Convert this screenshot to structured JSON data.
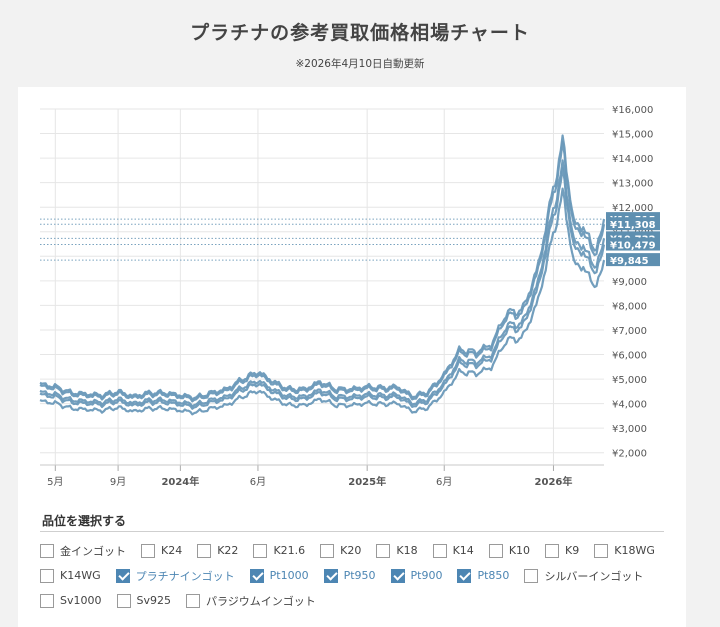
{
  "header": {
    "title": "プラチナの参考買取価格相場チャート",
    "subtitle": "※2026年4月10日自動更新"
  },
  "chart_data": {
    "type": "line",
    "title": "",
    "ylim": [
      1500,
      16000
    ],
    "y_ticks": [
      2000,
      3000,
      4000,
      5000,
      6000,
      7000,
      8000,
      9000,
      10000,
      11000,
      12000,
      13000,
      14000,
      15000,
      16000
    ],
    "y_tick_labels": [
      "¥2,000",
      "¥3,000",
      "¥4,000",
      "¥5,000",
      "¥6,000",
      "¥7,000",
      "¥8,000",
      "¥9,000",
      "¥10,000",
      "¥11,000",
      "¥12,000",
      "¥13,000",
      "¥14,000",
      "¥15,000",
      "¥16,000"
    ],
    "x_range": [
      "2023-04-01",
      "2026-04-10"
    ],
    "x_ticks": [
      {
        "date": "2023-05-01",
        "label": "5月",
        "bold": false
      },
      {
        "date": "2023-09-01",
        "label": "9月",
        "bold": false
      },
      {
        "date": "2024-01-01",
        "label": "2024年",
        "bold": true
      },
      {
        "date": "2024-06-01",
        "label": "6月",
        "bold": false
      },
      {
        "date": "2025-01-01",
        "label": "2025年",
        "bold": true
      },
      {
        "date": "2025-06-01",
        "label": "6月",
        "bold": false
      },
      {
        "date": "2026-01-01",
        "label": "2026年",
        "bold": true
      }
    ],
    "line_color": "#6a99b9",
    "label_color": "#5e8fb0",
    "grid": true,
    "profile": [
      {
        "x": "2023-04-01",
        "y": 4800
      },
      {
        "x": "2023-05-01",
        "y": 4700
      },
      {
        "x": "2023-06-01",
        "y": 4450
      },
      {
        "x": "2023-07-01",
        "y": 4400
      },
      {
        "x": "2023-08-01",
        "y": 4350
      },
      {
        "x": "2023-09-01",
        "y": 4500
      },
      {
        "x": "2023-10-01",
        "y": 4300
      },
      {
        "x": "2023-11-01",
        "y": 4450
      },
      {
        "x": "2023-12-01",
        "y": 4450
      },
      {
        "x": "2024-01-01",
        "y": 4350
      },
      {
        "x": "2024-02-01",
        "y": 4250
      },
      {
        "x": "2024-03-01",
        "y": 4450
      },
      {
        "x": "2024-04-01",
        "y": 4600
      },
      {
        "x": "2024-05-01",
        "y": 5000
      },
      {
        "x": "2024-06-01",
        "y": 5300
      },
      {
        "x": "2024-07-01",
        "y": 4900
      },
      {
        "x": "2024-08-01",
        "y": 4600
      },
      {
        "x": "2024-09-01",
        "y": 4600
      },
      {
        "x": "2024-10-01",
        "y": 4900
      },
      {
        "x": "2024-11-01",
        "y": 4600
      },
      {
        "x": "2024-12-01",
        "y": 4600
      },
      {
        "x": "2025-01-01",
        "y": 4700
      },
      {
        "x": "2025-02-01",
        "y": 4650
      },
      {
        "x": "2025-03-01",
        "y": 4700
      },
      {
        "x": "2025-04-01",
        "y": 4300
      },
      {
        "x": "2025-05-01",
        "y": 4500
      },
      {
        "x": "2025-06-01",
        "y": 5200
      },
      {
        "x": "2025-07-01",
        "y": 6200
      },
      {
        "x": "2025-08-01",
        "y": 6100
      },
      {
        "x": "2025-09-01",
        "y": 6400
      },
      {
        "x": "2025-10-01",
        "y": 7700
      },
      {
        "x": "2025-11-01",
        "y": 7800
      },
      {
        "x": "2025-12-01",
        "y": 9500
      },
      {
        "x": "2026-01-01",
        "y": 12800
      },
      {
        "x": "2026-01-20",
        "y": 14700
      },
      {
        "x": "2026-02-10",
        "y": 11300
      },
      {
        "x": "2026-03-01",
        "y": 11200
      },
      {
        "x": "2026-03-20",
        "y": 10300
      },
      {
        "x": "2026-04-10",
        "y": 11000
      }
    ],
    "series": [
      {
        "name": "プラチナインゴット",
        "latest": 11515
      },
      {
        "name": "Pt1000",
        "latest": 11308
      },
      {
        "name": "Pt950",
        "latest": 10732
      },
      {
        "name": "Pt900",
        "latest": 10479
      },
      {
        "name": "Pt850",
        "latest": 9845
      }
    ],
    "latest_labels": [
      "¥11,515",
      "¥11,308",
      "¥10,732",
      "¥10,479",
      "¥9,845"
    ]
  },
  "selector": {
    "title": "品位を選択する",
    "rows": [
      [
        {
          "label": "金インゴット",
          "checked": false
        },
        {
          "label": "K24",
          "checked": false
        },
        {
          "label": "K22",
          "checked": false
        },
        {
          "label": "K21.6",
          "checked": false
        },
        {
          "label": "K20",
          "checked": false
        },
        {
          "label": "K18",
          "checked": false
        },
        {
          "label": "K14",
          "checked": false
        },
        {
          "label": "K10",
          "checked": false
        },
        {
          "label": "K9",
          "checked": false
        },
        {
          "label": "K18WG",
          "checked": false
        }
      ],
      [
        {
          "label": "K14WG",
          "checked": false
        },
        {
          "label": "プラチナインゴット",
          "checked": true
        },
        {
          "label": "Pt1000",
          "checked": true
        },
        {
          "label": "Pt950",
          "checked": true
        },
        {
          "label": "Pt900",
          "checked": true
        },
        {
          "label": "Pt850",
          "checked": true
        },
        {
          "label": "シルバーインゴット",
          "checked": false
        }
      ],
      [
        {
          "label": "Sv1000",
          "checked": false
        },
        {
          "label": "Sv925",
          "checked": false
        },
        {
          "label": "パラジウムインゴット",
          "checked": false
        }
      ]
    ]
  }
}
